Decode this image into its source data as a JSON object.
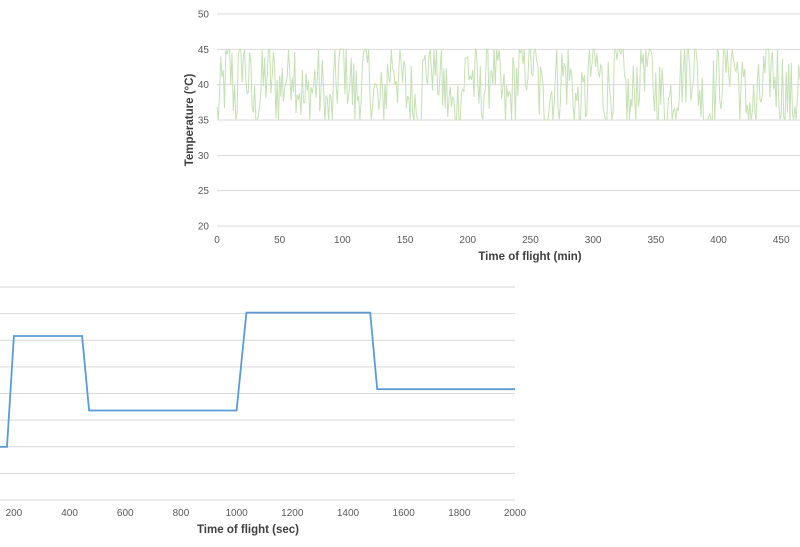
{
  "chart_data": [
    {
      "type": "line",
      "title": "",
      "xlabel": "Time of flight (min)",
      "ylabel": "Temperature (°C)",
      "xlim": [
        0,
        465
      ],
      "ylim": [
        20,
        50
      ],
      "x_ticks": [
        "0",
        "50",
        "100",
        "150",
        "200",
        "250",
        "300",
        "350",
        "400",
        "450"
      ],
      "y_ticks": [
        "20",
        "25",
        "30",
        "35",
        "40",
        "45",
        "50"
      ],
      "grid": "horizontal",
      "color": "#c5e0b4",
      "series": [
        {
          "noise_band": [
            35,
            45
          ],
          "x_step": 1,
          "x": [
            0,
            5,
            10,
            15,
            20,
            30,
            40,
            50,
            60,
            70,
            80,
            90,
            100,
            110,
            120,
            130,
            140,
            150,
            160,
            170,
            180,
            190,
            200,
            210,
            220,
            230,
            240,
            250,
            260,
            270,
            280,
            290,
            300,
            310,
            320,
            330,
            340,
            350,
            360,
            370,
            380,
            390,
            400,
            410,
            420,
            430,
            440,
            450,
            460,
            465
          ],
          "values": [
            35,
            40,
            43,
            38,
            45,
            36,
            42,
            39,
            44,
            37,
            41,
            35,
            45,
            38,
            42,
            36,
            44,
            39,
            37,
            45,
            40,
            35,
            43,
            38,
            44,
            36,
            41,
            45,
            37,
            40,
            42,
            35,
            44,
            38,
            43,
            36,
            45,
            39,
            37,
            42,
            44,
            35,
            41,
            45,
            38,
            36,
            43,
            40,
            37,
            41
          ]
        }
      ]
    },
    {
      "type": "line",
      "title": "",
      "xlabel": "Time of flight (sec)",
      "ylabel": "",
      "xlim": [
        150,
        2000
      ],
      "x_ticks": [
        "200",
        "400",
        "600",
        "800",
        "1000",
        "1200",
        "1400",
        "1600",
        "1800",
        "2000"
      ],
      "y_ticks": [],
      "grid": "horizontal",
      "color": "#5b9bd5",
      "series": [
        {
          "x": [
            150,
            175,
            200,
            445,
            470,
            1000,
            1035,
            1480,
            1505,
            2000
          ],
          "level": [
            0.25,
            0.25,
            0.77,
            0.77,
            0.42,
            0.42,
            0.88,
            0.88,
            0.52,
            0.52
          ]
        }
      ]
    }
  ]
}
